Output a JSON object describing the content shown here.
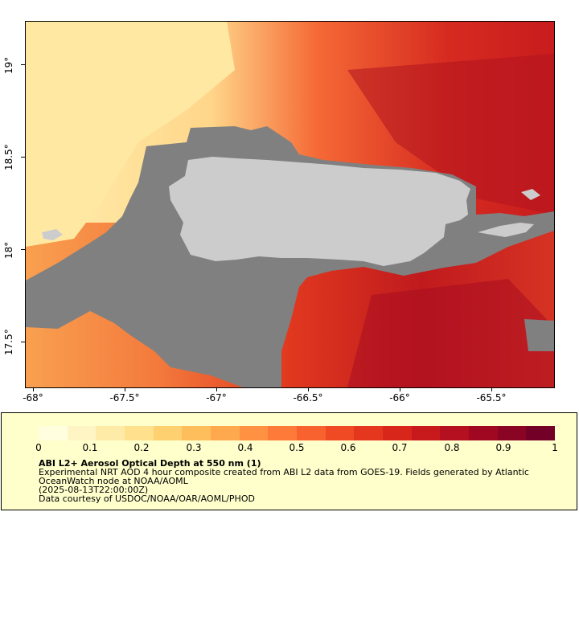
{
  "map": {
    "lat_ticks": [
      "19°",
      "18.5°",
      "18°",
      "17.5°"
    ],
    "lon_ticks": [
      "-68°",
      "-67.5°",
      "-67°",
      "-66.5°",
      "-66°",
      "-65.5°"
    ],
    "lat_range": [
      17.25,
      19.25
    ],
    "lon_range": [
      -68.05,
      -65.2
    ],
    "colors": {
      "land": "#cccccc",
      "no_data": "#808080",
      "ocean_low": "#ffe69a",
      "ocean_high": "#9b0024"
    }
  },
  "colorbar": {
    "ticks": [
      "0",
      "0.1",
      "0.2",
      "0.3",
      "0.4",
      "0.5",
      "0.6",
      "0.7",
      "0.8",
      "0.9",
      "1"
    ],
    "colors": [
      "#ffffe0",
      "#fff5c4",
      "#ffeba8",
      "#ffe08c",
      "#ffd070",
      "#ffbe5c",
      "#ffa94e",
      "#ff9143",
      "#fd7a38",
      "#f8622e",
      "#f04a24",
      "#e5371e",
      "#d8271a",
      "#c81a1c",
      "#b5101f",
      "#a00822",
      "#8a0424",
      "#730026"
    ]
  },
  "legend": {
    "title": "ABI L2+ Aerosol Optical Depth at 550 nm (1)",
    "line1": "Experimental NRT AOD 4 hour composite created from ABI L2 data from GOES-19. Fields generated by Atlantic OceanWatch node at NOAA/AOML",
    "line2": "(2025-08-13T22:00:00Z)",
    "line3": "Data courtesy of USDOC/NOAA/OAR/AOML/PHOD"
  }
}
